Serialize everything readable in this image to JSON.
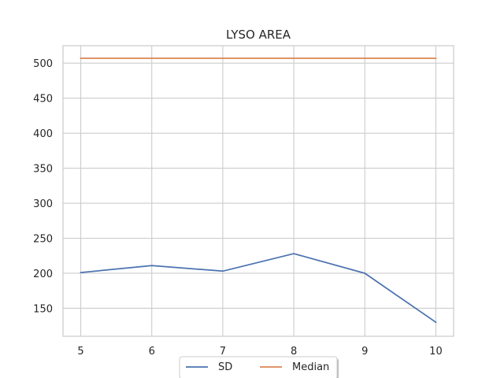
{
  "chart_data": {
    "type": "line",
    "title": "LYSO AREA",
    "xlabel": "",
    "ylabel": "",
    "x": [
      5,
      6,
      7,
      8,
      9,
      10
    ],
    "xlim": [
      4.75,
      10.25
    ],
    "ylim": [
      110,
      525
    ],
    "xticks": [
      5,
      6,
      7,
      8,
      9,
      10
    ],
    "yticks": [
      150,
      200,
      250,
      300,
      350,
      400,
      450,
      500
    ],
    "grid": true,
    "legend_position": "bottom-center",
    "series": [
      {
        "name": "SD",
        "color": "#4c72b0",
        "values": [
          201,
          211,
          203,
          228,
          200,
          130
        ]
      },
      {
        "name": "Median",
        "color": "#dd8452",
        "values": [
          507,
          507,
          507,
          507,
          507,
          507
        ]
      }
    ]
  }
}
